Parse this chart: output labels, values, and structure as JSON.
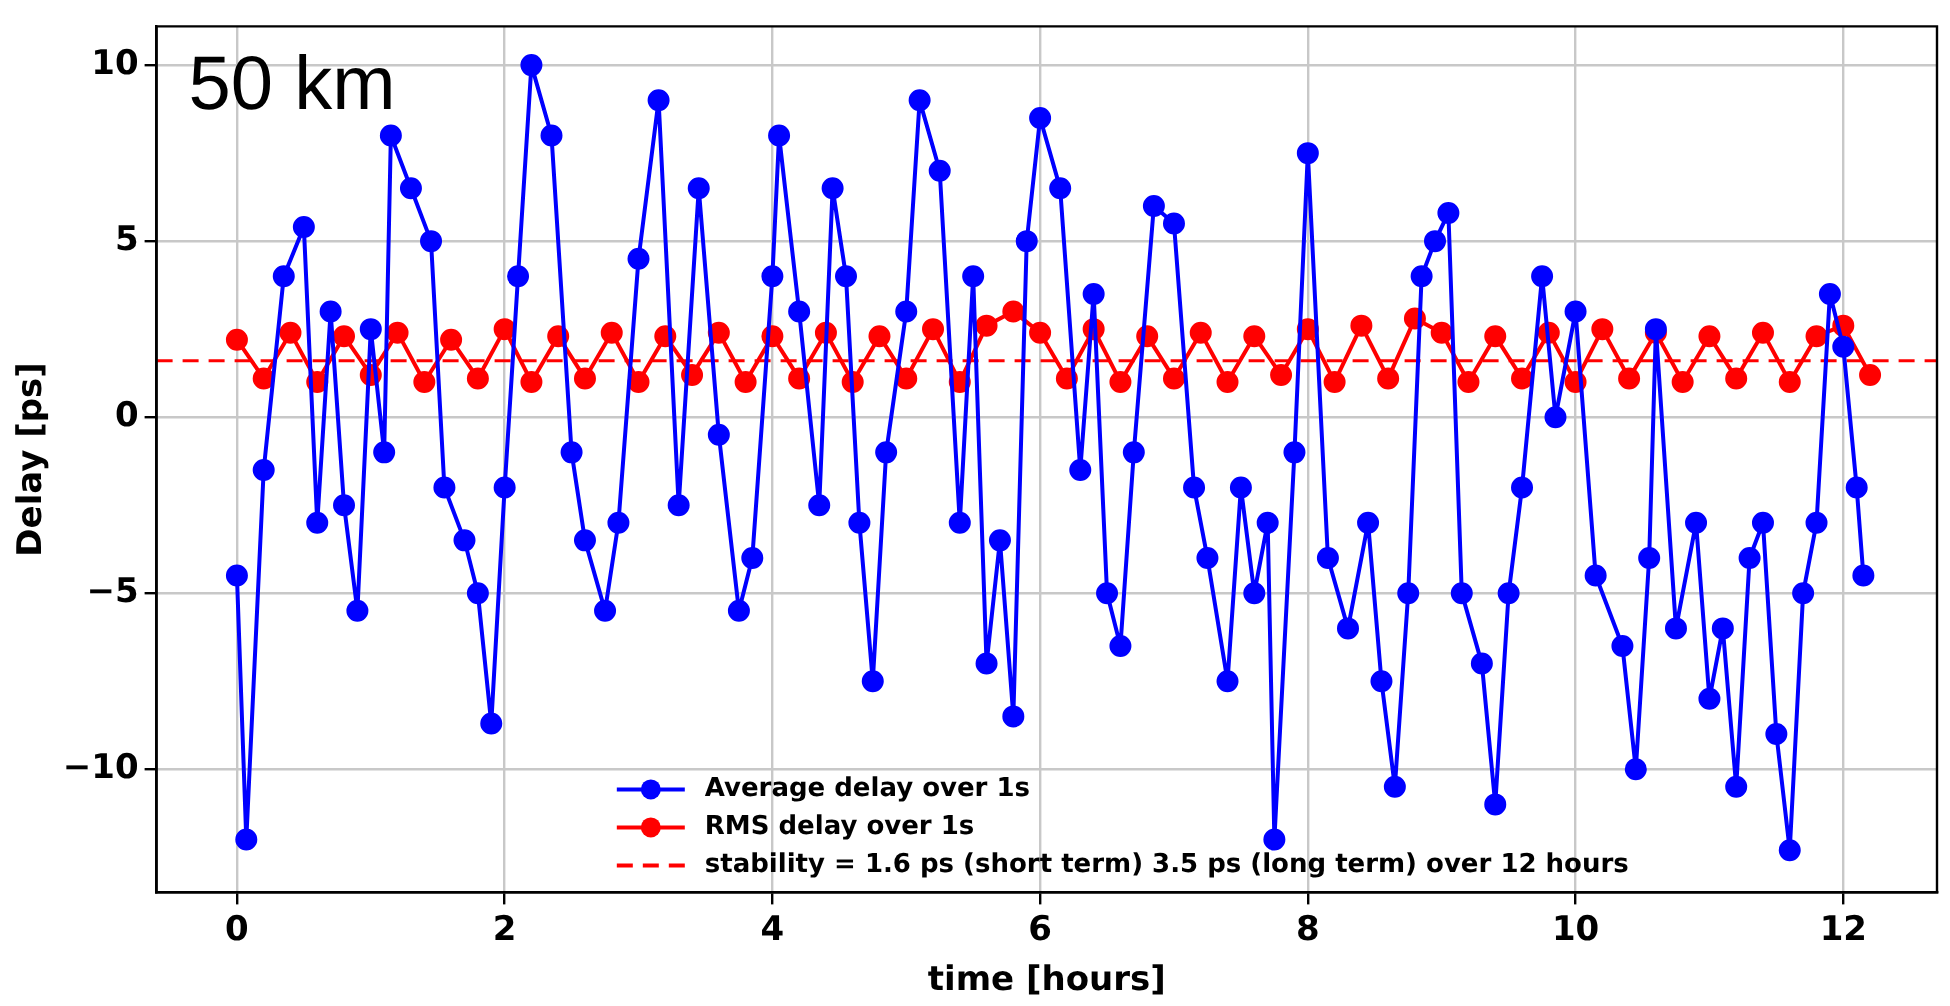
{
  "chart_data": {
    "type": "line",
    "xlabel": "time [hours]",
    "ylabel": "Delay [ps]",
    "annotations": [
      "50 km"
    ],
    "xlim": [
      -0.6,
      12.7
    ],
    "ylim": [
      -13.5,
      11.1
    ],
    "xticks": [
      0,
      2,
      4,
      6,
      8,
      10,
      12
    ],
    "yticks": [
      {
        "value": -10,
        "label": "−10"
      },
      {
        "value": -5,
        "label": "−5"
      },
      0,
      5,
      10
    ],
    "grid": true,
    "legend": "bottom",
    "marker": "circle",
    "line_style": "solid",
    "series": [
      {
        "name": "Average delay over 1s",
        "color": "#0000ff",
        "x": [
          0.0,
          0.07,
          0.2,
          0.35,
          0.5,
          0.6,
          0.7,
          0.8,
          0.9,
          1.0,
          1.1,
          1.15,
          1.3,
          1.45,
          1.55,
          1.7,
          1.8,
          1.9,
          2.0,
          2.1,
          2.2,
          2.35,
          2.5,
          2.6,
          2.75,
          2.85,
          3.0,
          3.15,
          3.3,
          3.45,
          3.6,
          3.75,
          3.85,
          4.0,
          4.05,
          4.2,
          4.35,
          4.45,
          4.55,
          4.65,
          4.75,
          4.85,
          5.0,
          5.1,
          5.25,
          5.4,
          5.5,
          5.6,
          5.7,
          5.8,
          5.9,
          6.0,
          6.15,
          6.3,
          6.4,
          6.5,
          6.6,
          6.7,
          6.85,
          7.0,
          7.15,
          7.25,
          7.4,
          7.5,
          7.6,
          7.7,
          7.75,
          7.9,
          8.0,
          8.15,
          8.3,
          8.45,
          8.55,
          8.65,
          8.75,
          8.85,
          8.95,
          9.05,
          9.15,
          9.3,
          9.4,
          9.5,
          9.6,
          9.75,
          9.85,
          10.0,
          10.15,
          10.35,
          10.45,
          10.55,
          10.6,
          10.75,
          10.9,
          11.0,
          11.1,
          11.2,
          11.3,
          11.4,
          11.5,
          11.6,
          11.7,
          11.8,
          11.9,
          12.0,
          12.1,
          12.15
        ],
        "values": [
          -4.5,
          -12.0,
          -1.5,
          4.0,
          5.4,
          -3.0,
          3.0,
          -2.5,
          -5.5,
          2.5,
          -1.0,
          8.0,
          6.5,
          5.0,
          -2.0,
          -3.5,
          -5.0,
          -8.7,
          -2.0,
          4.0,
          10.0,
          8.0,
          -1.0,
          -3.5,
          -5.5,
          -3.0,
          4.5,
          9.0,
          -2.5,
          6.5,
          -0.5,
          -5.5,
          -4.0,
          4.0,
          8.0,
          3.0,
          -2.5,
          6.5,
          4.0,
          -3.0,
          -7.5,
          -1.0,
          3.0,
          9.0,
          7.0,
          -3.0,
          4.0,
          -7.0,
          -3.5,
          -8.5,
          5.0,
          8.5,
          6.5,
          -1.5,
          3.5,
          -5.0,
          -6.5,
          -1.0,
          6.0,
          5.5,
          -2.0,
          -4.0,
          -7.5,
          -2.0,
          -5.0,
          -3.0,
          -12.0,
          -1.0,
          7.5,
          -4.0,
          -6.0,
          -3.0,
          -7.5,
          -10.5,
          -5.0,
          4.0,
          5.0,
          5.8,
          -5.0,
          -7.0,
          -11.0,
          -5.0,
          -2.0,
          4.0,
          0,
          3.0,
          -4.5,
          -6.5,
          -10.0,
          -4.0,
          2.5,
          -6.0,
          -3.0,
          -8.0,
          -6.0,
          -10.5,
          -4.0,
          -3.0,
          -9.0,
          -12.3,
          -5.0,
          -3.0,
          3.5,
          2.0,
          -2.0,
          -4.5
        ]
      },
      {
        "name": "RMS delay over 1s",
        "color": "#ff0000",
        "x": [
          0.0,
          0.2,
          0.4,
          0.6,
          0.8,
          1.0,
          1.2,
          1.4,
          1.6,
          1.8,
          2.0,
          2.2,
          2.4,
          2.6,
          2.8,
          3.0,
          3.2,
          3.4,
          3.6,
          3.8,
          4.0,
          4.2,
          4.4,
          4.6,
          4.8,
          5.0,
          5.2,
          5.4,
          5.6,
          5.8,
          6.0,
          6.2,
          6.4,
          6.6,
          6.8,
          7.0,
          7.2,
          7.4,
          7.6,
          7.8,
          8.0,
          8.2,
          8.4,
          8.6,
          8.8,
          9.0,
          9.2,
          9.4,
          9.6,
          9.8,
          10.0,
          10.2,
          10.4,
          10.6,
          10.8,
          11.0,
          11.2,
          11.4,
          11.6,
          11.8,
          12.0,
          12.2
        ],
        "values": [
          2.2,
          1.1,
          2.4,
          1.0,
          2.3,
          1.2,
          2.4,
          1.0,
          2.2,
          1.1,
          2.5,
          1.0,
          2.3,
          1.1,
          2.4,
          1.0,
          2.3,
          1.2,
          2.4,
          1.0,
          2.3,
          1.1,
          2.4,
          1.0,
          2.3,
          1.1,
          2.5,
          1.0,
          2.6,
          3.0,
          2.4,
          1.1,
          2.5,
          1.0,
          2.3,
          1.1,
          2.4,
          1.0,
          2.3,
          1.2,
          2.5,
          1.0,
          2.6,
          1.1,
          2.8,
          2.4,
          1.0,
          2.3,
          1.1,
          2.4,
          1.0,
          2.5,
          1.1,
          2.4,
          1.0,
          2.3,
          1.1,
          2.4,
          1.0,
          2.3,
          2.6,
          1.2
        ]
      }
    ],
    "ref_lines": [
      {
        "axis": "y",
        "value": 1.6,
        "label": "stability = 1.6 ps (short term) 3.5 ps (long term) over 12 hours",
        "color": "#ff0000",
        "line_style": "dashed"
      }
    ]
  }
}
